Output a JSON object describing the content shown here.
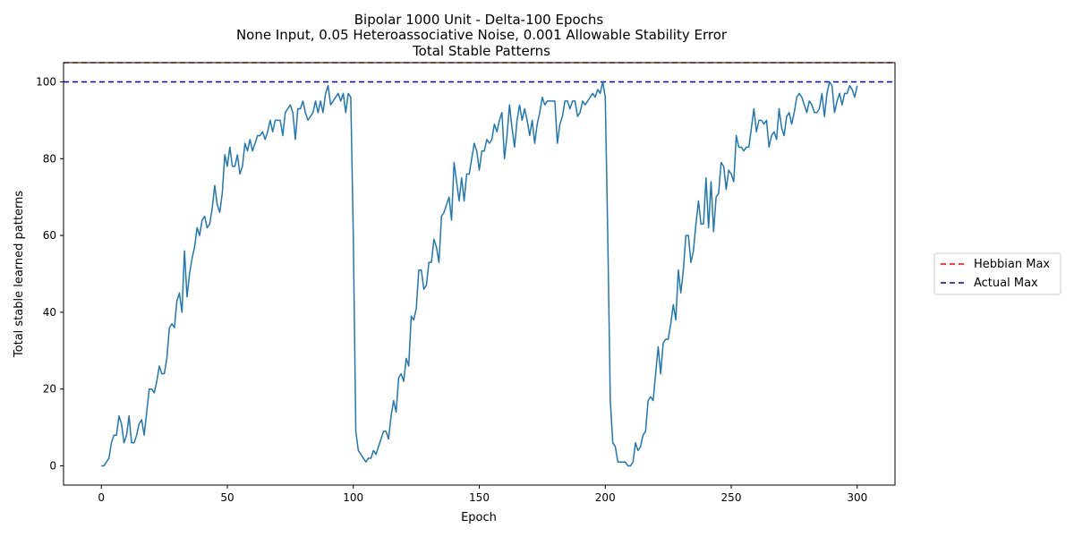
{
  "chart_data": {
    "type": "line",
    "title_lines": [
      "Bipolar 1000 Unit - Delta-100 Epochs",
      "None Input, 0.05 Heteroassociative Noise, 0.001 Allowable Stability Error",
      "Total Stable Patterns"
    ],
    "xlabel": "Epoch",
    "ylabel": "Total stable learned patterns",
    "xlim": [
      -15,
      315
    ],
    "ylim": [
      -5,
      105
    ],
    "xticks": [
      0,
      50,
      100,
      150,
      200,
      250,
      300
    ],
    "yticks": [
      0,
      20,
      40,
      60,
      80,
      100
    ],
    "grid": false,
    "legend_position": "right-outside",
    "colors": {
      "series": "#1f77b4",
      "hebbian": "#ff0000",
      "actual": "#0000cc",
      "axis": "#000000"
    },
    "series": [
      {
        "name": "",
        "x": [
          0,
          1,
          2,
          3,
          4,
          5,
          6,
          7,
          8,
          9,
          10,
          11,
          12,
          13,
          14,
          15,
          16,
          17,
          18,
          19,
          20,
          21,
          22,
          23,
          24,
          25,
          26,
          27,
          28,
          29,
          30,
          31,
          32,
          33,
          34,
          35,
          36,
          37,
          38,
          39,
          40,
          41,
          42,
          43,
          44,
          45,
          46,
          47,
          48,
          49,
          50,
          51,
          52,
          53,
          54,
          55,
          56,
          57,
          58,
          59,
          60,
          61,
          62,
          63,
          64,
          65,
          66,
          67,
          68,
          69,
          70,
          71,
          72,
          73,
          74,
          75,
          76,
          77,
          78,
          79,
          80,
          81,
          82,
          83,
          84,
          85,
          86,
          87,
          88,
          89,
          90,
          91,
          92,
          93,
          94,
          95,
          96,
          97,
          98,
          99,
          100,
          101,
          102,
          103,
          104,
          105,
          106,
          107,
          108,
          109,
          110,
          111,
          112,
          113,
          114,
          115,
          116,
          117,
          118,
          119,
          120,
          121,
          122,
          123,
          124,
          125,
          126,
          127,
          128,
          129,
          130,
          131,
          132,
          133,
          134,
          135,
          136,
          137,
          138,
          139,
          140,
          141,
          142,
          143,
          144,
          145,
          146,
          147,
          148,
          149,
          150,
          151,
          152,
          153,
          154,
          155,
          156,
          157,
          158,
          159,
          160,
          161,
          162,
          163,
          164,
          165,
          166,
          167,
          168,
          169,
          170,
          171,
          172,
          173,
          174,
          175,
          176,
          177,
          178,
          179,
          180,
          181,
          182,
          183,
          184,
          185,
          186,
          187,
          188,
          189,
          190,
          191,
          192,
          193,
          194,
          195,
          196,
          197,
          198,
          199,
          200,
          201,
          202,
          203,
          204,
          205,
          206,
          207,
          208,
          209,
          210,
          211,
          212,
          213,
          214,
          215,
          216,
          217,
          218,
          219,
          220,
          221,
          222,
          223,
          224,
          225,
          226,
          227,
          228,
          229,
          230,
          231,
          232,
          233,
          234,
          235,
          236,
          237,
          238,
          239,
          240,
          241,
          242,
          243,
          244,
          245,
          246,
          247,
          248,
          249,
          250,
          251,
          252,
          253,
          254,
          255,
          256,
          257,
          258,
          259,
          260,
          261,
          262,
          263,
          264,
          265,
          266,
          267,
          268,
          269,
          270,
          271,
          272,
          273,
          274,
          275,
          276,
          277,
          278,
          279,
          280,
          281,
          282,
          283,
          284,
          285,
          286,
          287,
          288,
          289,
          290,
          291,
          292,
          293,
          294,
          295,
          296,
          297,
          298,
          299,
          300
        ],
        "y": [
          0,
          0,
          1,
          2,
          6,
          8,
          8,
          13,
          11,
          6,
          8,
          13,
          6,
          6,
          8,
          11,
          12,
          8,
          14,
          20,
          20,
          19,
          22,
          26,
          24,
          24,
          28,
          36,
          37,
          36,
          43,
          45,
          40,
          56,
          44,
          50,
          54,
          57,
          62,
          60,
          64,
          65,
          62,
          63,
          67,
          73,
          68,
          66,
          71,
          81,
          78,
          83,
          78,
          78,
          81,
          76,
          78,
          84,
          82,
          85,
          82,
          84,
          86,
          86,
          87,
          85,
          87,
          90,
          87,
          90,
          90,
          90,
          86,
          92,
          93,
          94,
          92,
          85,
          93,
          93,
          95,
          92,
          90,
          91,
          92,
          95,
          92,
          95,
          92,
          97,
          99,
          94,
          95,
          96,
          97,
          95,
          97,
          92,
          97,
          96,
          60,
          9,
          4,
          3,
          2,
          1,
          2,
          2,
          4,
          3,
          5,
          7,
          9,
          9,
          7,
          13,
          17,
          14,
          23,
          24,
          22,
          28,
          26,
          39,
          38,
          41,
          51,
          51,
          46,
          47,
          53,
          53,
          59,
          57,
          53,
          65,
          66,
          68,
          70,
          64,
          79,
          74,
          69,
          75,
          69,
          76,
          76,
          80,
          84,
          82,
          77,
          82,
          82,
          85,
          84,
          85,
          89,
          87,
          90,
          92,
          80,
          86,
          94,
          88,
          83,
          90,
          94,
          90,
          93,
          90,
          86,
          90,
          84,
          89,
          92,
          96,
          94,
          95,
          95,
          95,
          95,
          84,
          89,
          91,
          95,
          95,
          93,
          95,
          95,
          91,
          92,
          95,
          94,
          95,
          96,
          97,
          96,
          98,
          97,
          100,
          96,
          60,
          17,
          6,
          5,
          1,
          1,
          1,
          1,
          0,
          0,
          1,
          6,
          4,
          5,
          8,
          9,
          17,
          18,
          17,
          24,
          31,
          24,
          32,
          33,
          33,
          37,
          42,
          38,
          51,
          45,
          51,
          60,
          60,
          53,
          56,
          63,
          69,
          63,
          63,
          75,
          62,
          74,
          61,
          70,
          71,
          79,
          78,
          72,
          77,
          76,
          74,
          86,
          83,
          83,
          82,
          83,
          83,
          88,
          93,
          87,
          90,
          90,
          89,
          90,
          83,
          86,
          87,
          85,
          93,
          88,
          86,
          91,
          92,
          89,
          92,
          96,
          97,
          96,
          94,
          92,
          95,
          94,
          92,
          92,
          93,
          97,
          91,
          97,
          100,
          99,
          92,
          95,
          97,
          94,
          97,
          97,
          99,
          98,
          96,
          99
        ]
      }
    ],
    "reference_lines": [
      {
        "name": "Hebbian Max",
        "y": 105,
        "style": "dashed",
        "color": "#ff0000"
      },
      {
        "name": "Actual Max",
        "y": 100,
        "style": "dashed",
        "color": "#0000cc"
      }
    ],
    "legend": [
      "Hebbian Max",
      "Actual Max"
    ]
  }
}
